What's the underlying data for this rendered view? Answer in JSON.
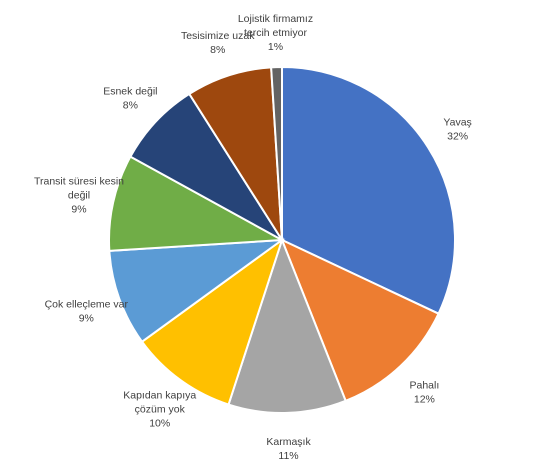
{
  "chart_data": {
    "type": "pie",
    "title": "",
    "legend": "none",
    "slices": [
      {
        "lines": [
          "Yavaş"
        ],
        "percent_label": "32%",
        "value": 32,
        "color": "#4472C4"
      },
      {
        "lines": [
          "Pahalı"
        ],
        "percent_label": "12%",
        "value": 12,
        "color": "#ED7D31"
      },
      {
        "lines": [
          "Karmaşık"
        ],
        "percent_label": "11%",
        "value": 11,
        "color": "#A5A5A5"
      },
      {
        "lines": [
          "Kapıdan kapıya",
          "çözüm yok"
        ],
        "percent_label": "10%",
        "value": 10,
        "color": "#FFC000"
      },
      {
        "lines": [
          "Çok elleçleme var"
        ],
        "percent_label": "9%",
        "value": 9,
        "color": "#5B9BD5"
      },
      {
        "lines": [
          "Transit süresi kesin",
          "değil"
        ],
        "percent_label": "9%",
        "value": 9,
        "color": "#70AD47"
      },
      {
        "lines": [
          "Esnek değil"
        ],
        "percent_label": "8%",
        "value": 8,
        "color": "#264478"
      },
      {
        "lines": [
          "Tesisimize uzak"
        ],
        "percent_label": "8%",
        "value": 8,
        "color": "#9E480E"
      },
      {
        "lines": [
          "Lojistik firmamız",
          "tercih etmiyor"
        ],
        "percent_label": "1%",
        "value": 1,
        "color": "#636363"
      }
    ]
  }
}
